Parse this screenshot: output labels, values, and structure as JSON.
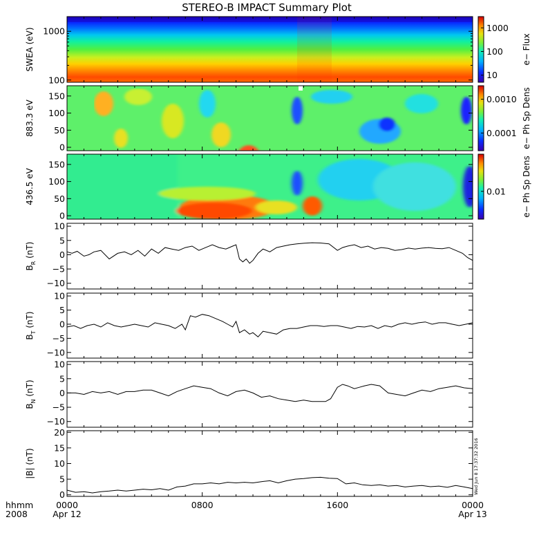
{
  "chart_data": {
    "title": "STEREO-B IMPACT Summary Plot",
    "x_axis": {
      "label_line1": "hhmm",
      "label_line2": "2008",
      "ticks": [
        {
          "value": 0,
          "label": "0000",
          "sub": "Apr 12"
        },
        {
          "value": 8,
          "label": "0800",
          "sub": ""
        },
        {
          "value": 16,
          "label": "1600",
          "sub": ""
        },
        {
          "value": 24,
          "label": "0000",
          "sub": "Apr 13"
        }
      ],
      "minor_ticks_hours": 1,
      "range_hours": [
        0,
        24
      ]
    },
    "panels": [
      {
        "id": "swea",
        "type": "heatmap",
        "ylabel": "SWEA (eV)",
        "yscale": "log",
        "ylim": [
          90,
          2000
        ],
        "yticks": [
          {
            "value": 100,
            "label": "100"
          },
          {
            "value": 1000,
            "label": "1000"
          }
        ],
        "colorbar": {
          "label": "e− Flux",
          "scale": "log",
          "range": [
            5,
            3000
          ],
          "ticks": [
            {
              "value": 10,
              "label": "10"
            },
            {
              "value": 100,
              "label": "100"
            },
            {
              "value": 1000,
              "label": "1000"
            }
          ]
        }
      },
      {
        "id": "pad883",
        "type": "heatmap",
        "ylabel": "883.3 eV",
        "ylim": [
          -10,
          180
        ],
        "yticks": [
          {
            "value": 0,
            "label": "0"
          },
          {
            "value": 50,
            "label": "50"
          },
          {
            "value": 100,
            "label": "100"
          },
          {
            "value": 150,
            "label": "150"
          }
        ],
        "colorbar": {
          "label": "e− Ph Sp Dens",
          "scale": "log",
          "range": [
            3e-05,
            0.0025
          ],
          "ticks": [
            {
              "value": 0.0001,
              "label": "0.0001"
            },
            {
              "value": 0.001,
              "label": "0.0010"
            }
          ]
        }
      },
      {
        "id": "pad436",
        "type": "heatmap",
        "ylabel": "436.5 eV",
        "ylim": [
          -10,
          180
        ],
        "yticks": [
          {
            "value": 0,
            "label": "0"
          },
          {
            "value": 50,
            "label": "50"
          },
          {
            "value": 100,
            "label": "100"
          },
          {
            "value": 150,
            "label": "150"
          }
        ],
        "colorbar": {
          "label": "e− Ph Sp Dens",
          "scale": "log",
          "range": [
            0.003,
            0.05
          ],
          "ticks": [
            {
              "value": 0.01,
              "label": "0.01"
            }
          ]
        }
      },
      {
        "id": "br",
        "type": "line",
        "ylabel_main": "B",
        "ylabel_sub": "R",
        "ylabel_unit": " (nT)",
        "ylim": [
          -12,
          11
        ],
        "yticks": [
          {
            "value": -10,
            "label": "−10"
          },
          {
            "value": -5,
            "label": "−5"
          },
          {
            "value": 0,
            "label": "0"
          },
          {
            "value": 5,
            "label": "5"
          },
          {
            "value": 10,
            "label": "10"
          }
        ],
        "x": [
          0,
          0.3,
          0.6,
          1,
          1.3,
          1.6,
          2,
          2.5,
          3,
          3.4,
          3.8,
          4.2,
          4.6,
          5,
          5.4,
          5.8,
          6.2,
          6.6,
          7,
          7.4,
          7.8,
          8.2,
          8.6,
          9,
          9.4,
          9.8,
          10,
          10.2,
          10.4,
          10.6,
          10.8,
          11,
          11.3,
          11.6,
          12,
          12.4,
          12.8,
          13.2,
          13.6,
          14,
          14.5,
          15,
          15.5,
          16,
          16.3,
          16.6,
          17,
          17.4,
          17.8,
          18.2,
          18.6,
          19,
          19.4,
          19.8,
          20.2,
          20.6,
          21,
          21.4,
          21.8,
          22.2,
          22.6,
          23,
          23.4,
          23.7,
          24
        ],
        "y": [
          1,
          0.5,
          1.2,
          -0.5,
          0,
          1,
          1.5,
          -1.5,
          0.5,
          1,
          0,
          1.5,
          -0.5,
          2,
          0.5,
          2.5,
          2,
          1.5,
          2.5,
          3,
          1.5,
          2.5,
          3.5,
          2.5,
          2,
          3,
          3.5,
          -1.5,
          -2.5,
          -1.5,
          -3,
          -2,
          0.5,
          2,
          1,
          2.5,
          3,
          3.5,
          3.8,
          4,
          4.2,
          4.1,
          3.8,
          1.5,
          2.5,
          3,
          3.5,
          2.5,
          3,
          2,
          2.5,
          2.2,
          1.5,
          1.8,
          2.3,
          2,
          2.3,
          2.5,
          2.2,
          2.1,
          2.5,
          1.5,
          0.5,
          -1,
          -2
        ]
      },
      {
        "id": "bt",
        "type": "line",
        "ylabel_main": "B",
        "ylabel_sub": "T",
        "ylabel_unit": " (nT)",
        "ylim": [
          -12,
          11
        ],
        "yticks": [
          {
            "value": -10,
            "label": "−10"
          },
          {
            "value": -5,
            "label": "−5"
          },
          {
            "value": 0,
            "label": "0"
          },
          {
            "value": 5,
            "label": "5"
          },
          {
            "value": 10,
            "label": "10"
          }
        ],
        "x": [
          0,
          0.4,
          0.8,
          1.2,
          1.6,
          2,
          2.4,
          2.8,
          3.2,
          3.6,
          4,
          4.4,
          4.8,
          5.2,
          5.6,
          6,
          6.4,
          6.8,
          7,
          7.3,
          7.6,
          8,
          8.4,
          8.8,
          9.2,
          9.5,
          9.8,
          10,
          10.2,
          10.5,
          10.8,
          11,
          11.3,
          11.6,
          12,
          12.4,
          12.8,
          13.2,
          13.6,
          14,
          14.4,
          14.8,
          15.2,
          15.6,
          16,
          16.4,
          16.8,
          17.2,
          17.6,
          18,
          18.4,
          18.8,
          19.2,
          19.6,
          20,
          20.4,
          20.8,
          21.2,
          21.6,
          22,
          22.4,
          22.8,
          23.2,
          23.6,
          24
        ],
        "y": [
          -1,
          -0.5,
          -1.5,
          -0.5,
          0,
          -1,
          0.5,
          -0.5,
          -1,
          -0.5,
          0,
          -0.5,
          -1,
          0.5,
          0,
          -0.5,
          -1.5,
          0,
          -2,
          3,
          2.5,
          3.5,
          3,
          2,
          1,
          0,
          -1,
          1,
          -3,
          -2,
          -3.5,
          -3,
          -4.5,
          -2.5,
          -3,
          -3.5,
          -2,
          -1.5,
          -1.5,
          -1,
          -0.5,
          -0.5,
          -0.8,
          -0.5,
          -0.5,
          -1,
          -1.5,
          -0.8,
          -1,
          -0.5,
          -1.5,
          -0.5,
          -1,
          0,
          0.5,
          0,
          0.5,
          0.8,
          0,
          0.5,
          0.5,
          0,
          -0.5,
          0,
          0.5
        ]
      },
      {
        "id": "bn",
        "type": "line",
        "ylabel_main": "B",
        "ylabel_sub": "N",
        "ylabel_unit": " (nT)",
        "ylim": [
          -12,
          11
        ],
        "yticks": [
          {
            "value": -10,
            "label": "−10"
          },
          {
            "value": -5,
            "label": "−5"
          },
          {
            "value": 0,
            "label": "0"
          },
          {
            "value": 5,
            "label": "5"
          },
          {
            "value": 10,
            "label": "10"
          }
        ],
        "x": [
          0,
          0.5,
          1,
          1.5,
          2,
          2.5,
          3,
          3.5,
          4,
          4.5,
          5,
          5.5,
          6,
          6.5,
          7,
          7.5,
          8,
          8.5,
          9,
          9.5,
          10,
          10.5,
          11,
          11.5,
          12,
          12.5,
          13,
          13.5,
          14,
          14.5,
          15,
          15.3,
          15.6,
          16,
          16.3,
          16.6,
          17,
          17.3,
          17.6,
          18,
          18.5,
          19,
          19.5,
          20,
          20.5,
          21,
          21.5,
          22,
          22.5,
          23,
          23.5,
          24
        ],
        "y": [
          0,
          0,
          -0.5,
          0.5,
          0,
          0.5,
          -0.5,
          0.5,
          0.5,
          1,
          1,
          0,
          -1,
          0.5,
          1.5,
          2.5,
          2,
          1.5,
          0,
          -1,
          0.5,
          1,
          0,
          -1.5,
          -1,
          -2,
          -2.5,
          -3,
          -2.5,
          -3,
          -3,
          -3,
          -2,
          2,
          3,
          2.5,
          1.5,
          2,
          2.5,
          3,
          2.5,
          0,
          -0.5,
          -1,
          0,
          1,
          0.5,
          1.5,
          2,
          2.5,
          1.8,
          1.5
        ]
      },
      {
        "id": "bmag",
        "type": "line",
        "ylabel_main": "|B|",
        "ylabel_sub": "",
        "ylabel_unit": " (nT)",
        "ylim": [
          -0.5,
          20.5
        ],
        "yticks": [
          {
            "value": 0,
            "label": "0"
          },
          {
            "value": 5,
            "label": "5"
          },
          {
            "value": 10,
            "label": "10"
          },
          {
            "value": 15,
            "label": "15"
          },
          {
            "value": 20,
            "label": "20"
          }
        ],
        "x": [
          0,
          0.5,
          1,
          1.5,
          2,
          2.5,
          3,
          3.5,
          4,
          4.5,
          5,
          5.5,
          6,
          6.5,
          7,
          7.5,
          8,
          8.5,
          9,
          9.5,
          10,
          10.5,
          11,
          11.5,
          12,
          12.5,
          13,
          13.5,
          14,
          14.5,
          15,
          15.5,
          16,
          16.5,
          17,
          17.5,
          18,
          18.5,
          19,
          19.5,
          20,
          20.5,
          21,
          21.5,
          22,
          22.5,
          23,
          23.5,
          24
        ],
        "y": [
          1.5,
          0.8,
          1,
          0.6,
          1,
          1.2,
          1.5,
          1.2,
          1.5,
          1.8,
          1.6,
          2,
          1.5,
          2.5,
          2.8,
          3.5,
          3.5,
          3.8,
          3.5,
          4,
          3.8,
          4,
          3.8,
          4.2,
          4.5,
          3.8,
          4.5,
          5,
          5.2,
          5.5,
          5.6,
          5.3,
          5.2,
          3.5,
          3.8,
          3.2,
          3,
          3.2,
          2.8,
          3,
          2.5,
          2.8,
          3,
          2.6,
          2.8,
          2.4,
          3,
          2.5,
          2
        ]
      }
    ],
    "timestamp": "Wed Jun  8 17:37:32 2016"
  }
}
